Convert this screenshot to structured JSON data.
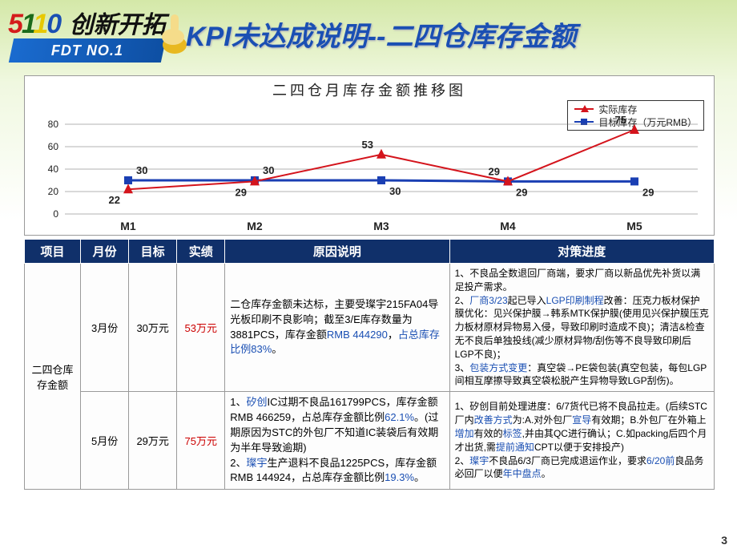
{
  "header": {
    "logo_num": "5110",
    "logo_cn": "创新开拓",
    "fdt": "FDT NO.1",
    "title": "KPI未达成说明--二四仓库存金额"
  },
  "chart": {
    "type": "line",
    "title": "二四仓月库存金额推移图",
    "legend": {
      "a": "实际库存",
      "b": "目标库存（万元RMB）"
    },
    "colors": {
      "a": "#d4141c",
      "b": "#1a3fb3",
      "grid": "#666666",
      "bg": "#ffffff"
    },
    "ylim": [
      0,
      80
    ],
    "ytick_step": 20,
    "categories": [
      "M1",
      "M2",
      "M3",
      "M4",
      "M5"
    ],
    "series_a": [
      22,
      29,
      53,
      29,
      75
    ],
    "series_b": [
      30,
      30,
      30,
      29,
      29
    ],
    "labels_a": [
      "22",
      "29",
      "53",
      "29",
      "75"
    ],
    "labels_b": [
      "30",
      "30",
      "30",
      "29",
      "29"
    ],
    "title_fontsize": 18,
    "line_width_a": 2,
    "line_width_b": 3,
    "marker_a": "triangle",
    "marker_b": "square"
  },
  "table": {
    "headers": [
      "项目",
      "月份",
      "目标",
      "实绩",
      "原因说明",
      "对策进度"
    ],
    "item_name": "二四仓库存金额",
    "rows": [
      {
        "month": "3月份",
        "target": "30万元",
        "actual": "53万元",
        "reason_html": "二仓库存金额未达标，主要受璨宇215FA04导光板印刷不良影响；截至3/E库存数量为3881PCS，库存金额<span class='blue'>RMB 444290</span>，<span class='blue'>占总库存比例83%</span>。",
        "action_html": "1、不良品全数退回厂商端，要求厂商以新品优先补货以满足投产需求。<br>2、<span class='blue'>厂商3/23</span>起已导入<span class='blue'>LGP印刷制程</span>改善：压克力板材保护膜优化：见兴保护膜→韩系MTK保护膜(使用见兴保护膜压克力板材原材异物易入侵，导致印刷时造成不良)；清洁&检查无不良后单独投线(减少原材异物/刮伤等不良导致印刷后LGP不良)；<br>3、<span class='blue'>包装方式变更</span>：真空袋→PE袋包装(真空包装，每包LGP间相互摩擦导致真空袋松脱产生异物导致LGP刮伤)。"
      },
      {
        "month": "5月份",
        "target": "29万元",
        "actual": "75万元",
        "reason_html": "1、<span class='blue'>矽创</span>IC过期不良品161799PCS，库存金额RMB 466259，占总库存金额比例<span class='blue'>62.1%</span>。(过期原因为STC的外包厂不知道IC装袋后有效期为半年导致逾期)<br>2、<span class='blue'>璨宇</span>生产退料不良品1225PCS，库存金额RMB 144924，占总库存金额比例<span class='blue'>19.3%</span>。",
        "action_html": "1、矽创目前处理进度：6/7货代已将不良品拉走。(后续STC厂内<span class='blue'>改善方式</span>为:A.对外包厂<span class='blue'>宣导</span>有效期；B.外包厂在外箱上<span class='blue'>增加</span>有效的<span class='blue'>标签</span>,并由其QC进行确认；C.如packing后四个月才出货,需<span class='blue'>提前通知</span>CPT以便于安排投产)<br>2、<span class='blue'>璨宇</span>不良品6/3厂商已完成退运作业，要求<span class='blue'>6/20前</span>良品务必回厂以便<span class='blue'>年中盘点</span>。"
      }
    ]
  },
  "page_number": "3"
}
